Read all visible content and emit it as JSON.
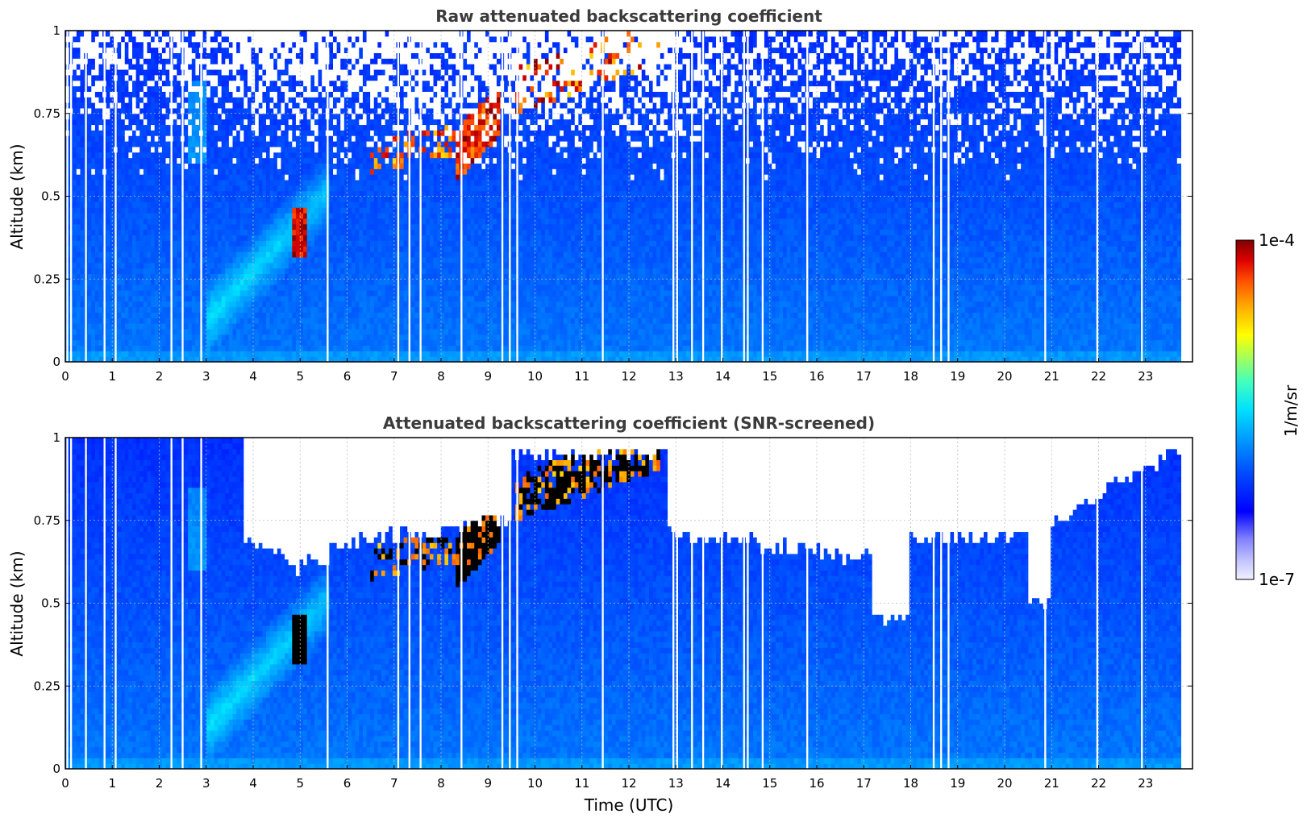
{
  "chart_data": [
    {
      "type": "heatmap",
      "title": "Raw attenuated backscattering coefficient",
      "xlabel": "",
      "ylabel": "Altitude (km)",
      "xlim": [
        0,
        24
      ],
      "ylim": [
        0,
        1
      ],
      "x_ticks": [
        "0",
        "1",
        "2",
        "3",
        "4",
        "5",
        "6",
        "7",
        "8",
        "9",
        "10",
        "11",
        "12",
        "13",
        "14",
        "15",
        "16",
        "17",
        "18",
        "19",
        "20",
        "21",
        "22",
        "23"
      ],
      "y_ticks": [
        "0",
        "0.25",
        "0.5",
        "0.75",
        "1"
      ],
      "data_end_hour": 23.75,
      "grid": true,
      "features": [
        {
          "label": "aerosol layer plume",
          "x": [
            3.5,
            5.2
          ],
          "y": [
            0.2,
            0.45
          ]
        },
        {
          "label": "cloud layer",
          "x": [
            4.9,
            5.1
          ],
          "y": [
            0.32,
            0.45
          ]
        },
        {
          "label": "cloud layer",
          "x": [
            8.4,
            9.3
          ],
          "y": [
            0.6,
            0.8
          ]
        },
        {
          "label": "cloud layer",
          "x": [
            9.8,
            12.6
          ],
          "y": [
            0.8,
            1.0
          ]
        }
      ]
    },
    {
      "type": "heatmap",
      "title": "Attenuated backscattering coefficient (SNR-screened)",
      "xlabel": "Time (UTC)",
      "ylabel": "Altitude (km)",
      "xlim": [
        0,
        24
      ],
      "ylim": [
        0,
        1
      ],
      "x_ticks": [
        "0",
        "1",
        "2",
        "3",
        "4",
        "5",
        "6",
        "7",
        "8",
        "9",
        "10",
        "11",
        "12",
        "13",
        "14",
        "15",
        "16",
        "17",
        "18",
        "19",
        "20",
        "21",
        "22",
        "23"
      ],
      "y_ticks": [
        "0",
        "0.25",
        "0.5",
        "0.75",
        "1"
      ],
      "data_end_hour": 23.75,
      "grid": true
    }
  ],
  "colorbar": {
    "label": "1/m/sr",
    "max_label": "1e-4",
    "min_label": "1e-7",
    "scale": "log",
    "colormap": "jet",
    "colors": [
      "#f0f0ff",
      "#c8c8ff",
      "#8080ff",
      "#0000ff",
      "#0050ff",
      "#00a0ff",
      "#00e0ff",
      "#40ffc0",
      "#a0ff60",
      "#ffff00",
      "#ffb000",
      "#ff5000",
      "#e00000",
      "#800000"
    ]
  }
}
